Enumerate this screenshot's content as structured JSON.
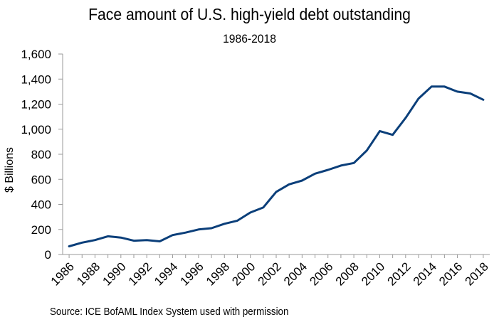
{
  "chart_data": {
    "type": "line",
    "title": "Face amount of U.S. high-yield debt outstanding",
    "subtitle": "1986-2018",
    "xlabel": "",
    "ylabel": "$ Billions",
    "ylim": [
      0,
      1600
    ],
    "yticks": [
      0,
      200,
      400,
      600,
      800,
      1000,
      1200,
      1400,
      1600
    ],
    "ytick_labels": [
      "0",
      "200",
      "400",
      "600",
      "800",
      "1,000",
      "1,200",
      "1,400",
      "1,600"
    ],
    "xticks": [
      1986,
      1988,
      1990,
      1992,
      1994,
      1996,
      1998,
      2000,
      2002,
      2004,
      2006,
      2008,
      2010,
      2012,
      2014,
      2016,
      2018
    ],
    "xtick_labels": [
      "1986",
      "1988",
      "1990",
      "1992",
      "1994",
      "1996",
      "1998",
      "2000",
      "2002",
      "2004",
      "2006",
      "2008",
      "2010",
      "2012",
      "2014",
      "2016",
      "2018"
    ],
    "grid": false,
    "legend": "none",
    "color": "#0b3f7a",
    "series": [
      {
        "x": [
          1986,
          1987,
          1988,
          1989,
          1990,
          1991,
          1992,
          1993,
          1994,
          1995,
          1996,
          1997,
          1998,
          1999,
          2000,
          2001,
          2002,
          2003,
          2004,
          2005,
          2006,
          2007,
          2008,
          2009,
          2010,
          2011,
          2012,
          2013,
          2014,
          2015,
          2016,
          2017,
          2018
        ],
        "values": [
          65,
          95,
          115,
          145,
          135,
          110,
          115,
          105,
          155,
          175,
          200,
          210,
          245,
          270,
          335,
          375,
          500,
          560,
          590,
          645,
          675,
          710,
          730,
          830,
          985,
          955,
          1090,
          1245,
          1340,
          1340,
          1300,
          1285,
          1235
        ]
      }
    ]
  },
  "source": "Source: ICE BofAML Index System used with permission"
}
